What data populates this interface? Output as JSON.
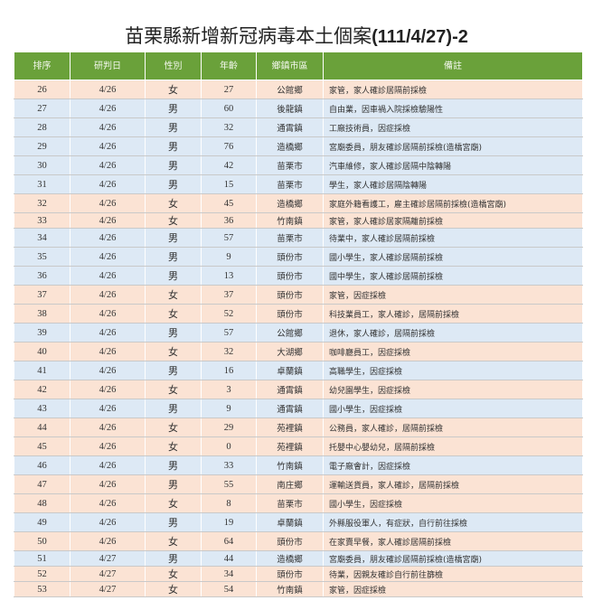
{
  "title": "苗栗縣新增新冠病毒本土個案",
  "title_suffix": "(111/4/27)-2",
  "colors": {
    "header": "#6aa13a",
    "row_peach": "#fbe3d4",
    "row_blue": "#dde9f5"
  },
  "headers": [
    "排序",
    "研判日",
    "性別",
    "年齡",
    "鄉鎮市區",
    "備註"
  ],
  "rows": [
    {
      "no": "26",
      "date": "4/26",
      "sex": "女",
      "age": "27",
      "district": "公館鄉",
      "note": "家管，家人確診居隔前採檢",
      "shade": "peach"
    },
    {
      "no": "27",
      "date": "4/26",
      "sex": "男",
      "age": "60",
      "district": "後龍鎮",
      "note": "自由業，因車禍入院採檢驗陽性",
      "shade": "blue"
    },
    {
      "no": "28",
      "date": "4/26",
      "sex": "男",
      "age": "32",
      "district": "通霄鎮",
      "note": "工廠技術員，因症採檢",
      "shade": "blue"
    },
    {
      "no": "29",
      "date": "4/26",
      "sex": "男",
      "age": "76",
      "district": "造橋鄉",
      "note": "宮廟委員，朋友確診居隔前採檢(造橋宮廟)",
      "shade": "blue"
    },
    {
      "no": "30",
      "date": "4/26",
      "sex": "男",
      "age": "42",
      "district": "苗栗市",
      "note": "汽車維修，家人確診居隔中陰轉陽",
      "shade": "blue"
    },
    {
      "no": "31",
      "date": "4/26",
      "sex": "男",
      "age": "15",
      "district": "苗栗市",
      "note": "學生，家人確診居隔陰轉陽",
      "shade": "blue"
    },
    {
      "no": "32",
      "date": "4/26",
      "sex": "女",
      "age": "45",
      "district": "造橋鄉",
      "note": "家庭外籍看護工，雇主確診居隔前採檢(造橋宮廟)",
      "shade": "peach"
    },
    {
      "no": "33",
      "date": "4/26",
      "sex": "女",
      "age": "36",
      "district": "竹南鎮",
      "note": "家管，家人確診居家隔離前採檢",
      "shade": "peach",
      "short": true
    },
    {
      "no": "34",
      "date": "4/26",
      "sex": "男",
      "age": "57",
      "district": "苗栗市",
      "note": "待業中，家人確診居隔前採檢",
      "shade": "blue"
    },
    {
      "no": "35",
      "date": "4/26",
      "sex": "男",
      "age": "9",
      "district": "頭份市",
      "note": "國小學生，家人確診居隔前採檢",
      "shade": "blue"
    },
    {
      "no": "36",
      "date": "4/26",
      "sex": "男",
      "age": "13",
      "district": "頭份市",
      "note": "國中學生，家人確診居隔前採檢",
      "shade": "blue"
    },
    {
      "no": "37",
      "date": "4/26",
      "sex": "女",
      "age": "37",
      "district": "頭份市",
      "note": "家管，因症採檢",
      "shade": "peach"
    },
    {
      "no": "38",
      "date": "4/26",
      "sex": "女",
      "age": "52",
      "district": "頭份市",
      "note": "科技業員工，家人確診，居隔前採檢",
      "shade": "peach"
    },
    {
      "no": "39",
      "date": "4/26",
      "sex": "男",
      "age": "57",
      "district": "公館鄉",
      "note": "退休，家人確診，居隔前採檢",
      "shade": "blue"
    },
    {
      "no": "40",
      "date": "4/26",
      "sex": "女",
      "age": "32",
      "district": "大湖鄉",
      "note": "咖啡廳員工，因症採檢",
      "shade": "peach"
    },
    {
      "no": "41",
      "date": "4/26",
      "sex": "男",
      "age": "16",
      "district": "卓蘭鎮",
      "note": "高職學生，因症採檢",
      "shade": "blue"
    },
    {
      "no": "42",
      "date": "4/26",
      "sex": "女",
      "age": "3",
      "district": "通霄鎮",
      "note": "幼兒園學生，因症採檢",
      "shade": "peach"
    },
    {
      "no": "43",
      "date": "4/26",
      "sex": "男",
      "age": "9",
      "district": "通霄鎮",
      "note": "國小學生，因症採檢",
      "shade": "blue"
    },
    {
      "no": "44",
      "date": "4/26",
      "sex": "女",
      "age": "29",
      "district": "苑裡鎮",
      "note": "公務員，家人確診，居隔前採檢",
      "shade": "peach"
    },
    {
      "no": "45",
      "date": "4/26",
      "sex": "女",
      "age": "0",
      "district": "苑裡鎮",
      "note": "托嬰中心嬰幼兒，居隔前採檢",
      "shade": "peach"
    },
    {
      "no": "46",
      "date": "4/26",
      "sex": "男",
      "age": "33",
      "district": "竹南鎮",
      "note": "電子廠會計，因症採檢",
      "shade": "blue"
    },
    {
      "no": "47",
      "date": "4/26",
      "sex": "男",
      "age": "55",
      "district": "南庄鄉",
      "note": "運輸送貨員，家人確診，居隔前採檢",
      "shade": "peach"
    },
    {
      "no": "48",
      "date": "4/26",
      "sex": "女",
      "age": "8",
      "district": "苗栗市",
      "note": "國小學生，因症採檢",
      "shade": "peach"
    },
    {
      "no": "49",
      "date": "4/26",
      "sex": "男",
      "age": "19",
      "district": "卓蘭鎮",
      "note": "外縣服役軍人，有症狀，自行前往採檢",
      "shade": "blue"
    },
    {
      "no": "50",
      "date": "4/26",
      "sex": "女",
      "age": "64",
      "district": "頭份市",
      "note": "在家賣早餐，家人確診居隔前採檢",
      "shade": "peach"
    },
    {
      "no": "51",
      "date": "4/27",
      "sex": "男",
      "age": "44",
      "district": "造橋鄉",
      "note": "宮廟委員，朋友確診居隔前採檢(造橋宮廟)",
      "shade": "blue",
      "short": true
    },
    {
      "no": "52",
      "date": "4/27",
      "sex": "女",
      "age": "34",
      "district": "頭份市",
      "note": "待業，因親友確診自行前往篩檢",
      "shade": "peach",
      "short": true
    },
    {
      "no": "53",
      "date": "4/27",
      "sex": "女",
      "age": "54",
      "district": "竹南鎮",
      "note": "家管，因症採檢",
      "shade": "peach",
      "short": true
    }
  ]
}
